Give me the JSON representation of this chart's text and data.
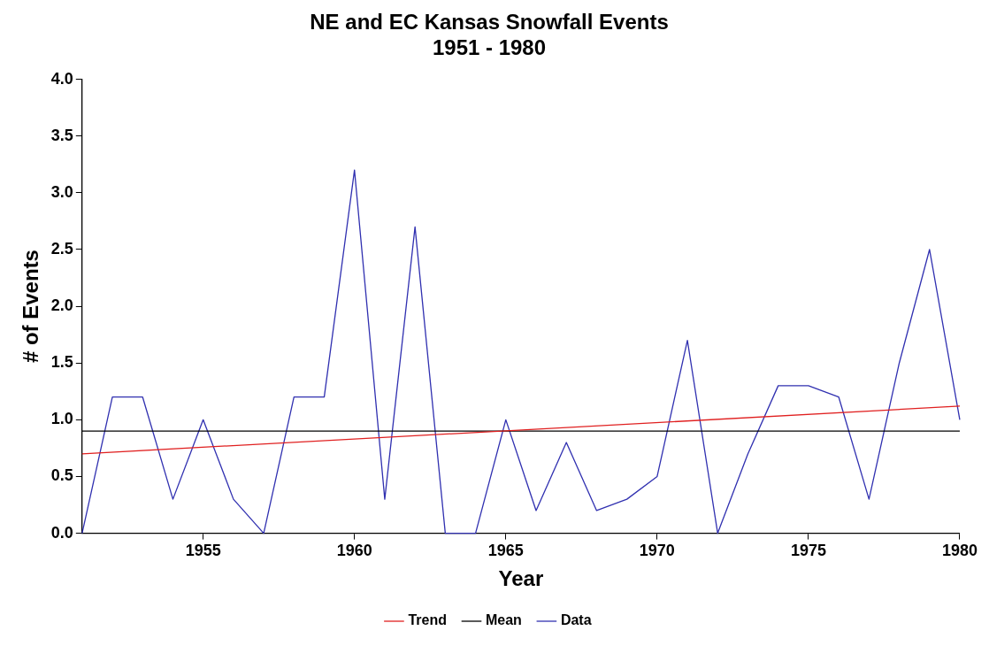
{
  "chart_data": {
    "type": "line",
    "title": "NE and EC Kansas Snowfall Events",
    "subtitle": "1951 - 1980",
    "xlabel": "Year",
    "ylabel": "# of Events",
    "x": [
      1951,
      1952,
      1953,
      1954,
      1955,
      1956,
      1957,
      1958,
      1959,
      1960,
      1961,
      1962,
      1963,
      1964,
      1965,
      1966,
      1967,
      1968,
      1969,
      1970,
      1971,
      1972,
      1973,
      1974,
      1975,
      1976,
      1977,
      1978,
      1979,
      1980
    ],
    "series": [
      {
        "name": "Trend",
        "color": "#e02020",
        "x": [
          1951,
          1980
        ],
        "values": [
          0.7,
          1.12
        ]
      },
      {
        "name": "Data",
        "color": "#3030b0",
        "values": [
          0,
          1.2,
          1.2,
          0.3,
          1.0,
          0.3,
          0,
          1.2,
          1.2,
          3.2,
          0.3,
          2.7,
          0,
          0,
          1.0,
          0.2,
          0.8,
          0.2,
          0.3,
          0.5,
          1.7,
          0,
          0.7,
          1.3,
          1.3,
          1.2,
          0.3,
          1.5,
          2.5,
          1.0
        ]
      }
    ],
    "xlim": [
      1951,
      1980
    ],
    "xticks": [
      1955,
      1960,
      1965,
      1970,
      1975,
      1980
    ],
    "ylim": [
      0,
      4
    ],
    "yticks": [
      {
        "value": 0,
        "label": "0.0"
      },
      {
        "value": 0.5,
        "label": "0.5"
      },
      {
        "value": 1,
        "label": "1.0"
      },
      {
        "value": 1.5,
        "label": "1.5"
      },
      {
        "value": 2,
        "label": "2.0"
      },
      {
        "value": 2.5,
        "label": "2.5"
      },
      {
        "value": 3,
        "label": "3.0"
      },
      {
        "value": 3.5,
        "label": "3.5"
      },
      {
        "value": 4,
        "label": "4.0"
      }
    ],
    "ref_lines": [
      {
        "axis": "y",
        "value": 0.9,
        "label": "Mean",
        "color": "#000000"
      }
    ],
    "grid": false,
    "legend": "bottom",
    "marker": "none",
    "line_style": "solid"
  }
}
